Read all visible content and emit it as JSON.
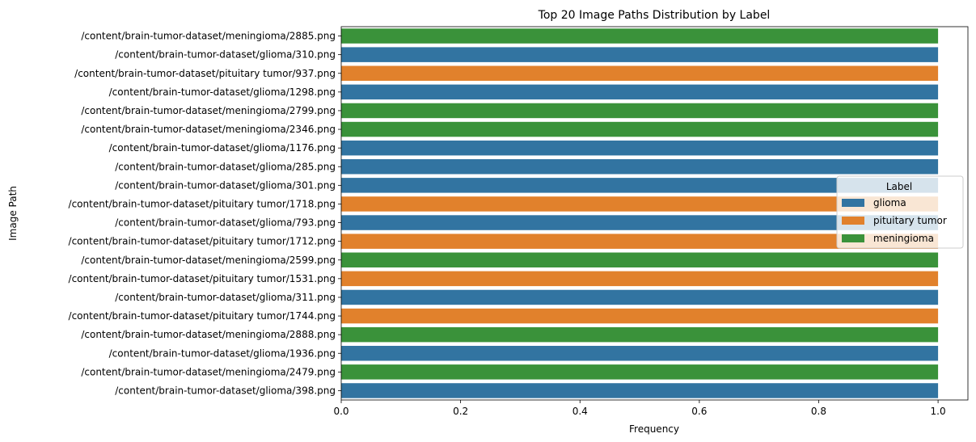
{
  "chart_data": {
    "type": "bar",
    "orientation": "horizontal",
    "title": "Top 20 Image Paths Distribution by Label",
    "xlabel": "Frequency",
    "ylabel": "Image Path",
    "xlim": [
      0,
      1.05
    ],
    "xticks": [
      0.0,
      0.2,
      0.4,
      0.6,
      0.8,
      1.0
    ],
    "xtick_labels": [
      "0.0",
      "0.2",
      "0.4",
      "0.6",
      "0.8",
      "1.0"
    ],
    "grid": false,
    "legend": {
      "title": "Label",
      "placement": "center-right",
      "entries": [
        {
          "name": "glioma",
          "color": "#3274a1"
        },
        {
          "name": "pituitary tumor",
          "color": "#e1812c"
        },
        {
          "name": "meningioma",
          "color": "#3a923a"
        }
      ]
    },
    "bars": [
      {
        "category": "/content/brain-tumor-dataset/meningioma/2885.png",
        "value": 1.0,
        "label": "meningioma"
      },
      {
        "category": "/content/brain-tumor-dataset/glioma/310.png",
        "value": 1.0,
        "label": "glioma"
      },
      {
        "category": "/content/brain-tumor-dataset/pituitary tumor/937.png",
        "value": 1.0,
        "label": "pituitary tumor"
      },
      {
        "category": "/content/brain-tumor-dataset/glioma/1298.png",
        "value": 1.0,
        "label": "glioma"
      },
      {
        "category": "/content/brain-tumor-dataset/meningioma/2799.png",
        "value": 1.0,
        "label": "meningioma"
      },
      {
        "category": "/content/brain-tumor-dataset/meningioma/2346.png",
        "value": 1.0,
        "label": "meningioma"
      },
      {
        "category": "/content/brain-tumor-dataset/glioma/1176.png",
        "value": 1.0,
        "label": "glioma"
      },
      {
        "category": "/content/brain-tumor-dataset/glioma/285.png",
        "value": 1.0,
        "label": "glioma"
      },
      {
        "category": "/content/brain-tumor-dataset/glioma/301.png",
        "value": 1.0,
        "label": "glioma"
      },
      {
        "category": "/content/brain-tumor-dataset/pituitary tumor/1718.png",
        "value": 1.0,
        "label": "pituitary tumor"
      },
      {
        "category": "/content/brain-tumor-dataset/glioma/793.png",
        "value": 1.0,
        "label": "glioma"
      },
      {
        "category": "/content/brain-tumor-dataset/pituitary tumor/1712.png",
        "value": 1.0,
        "label": "pituitary tumor"
      },
      {
        "category": "/content/brain-tumor-dataset/meningioma/2599.png",
        "value": 1.0,
        "label": "meningioma"
      },
      {
        "category": "/content/brain-tumor-dataset/pituitary tumor/1531.png",
        "value": 1.0,
        "label": "pituitary tumor"
      },
      {
        "category": "/content/brain-tumor-dataset/glioma/311.png",
        "value": 1.0,
        "label": "glioma"
      },
      {
        "category": "/content/brain-tumor-dataset/pituitary tumor/1744.png",
        "value": 1.0,
        "label": "pituitary tumor"
      },
      {
        "category": "/content/brain-tumor-dataset/meningioma/2888.png",
        "value": 1.0,
        "label": "meningioma"
      },
      {
        "category": "/content/brain-tumor-dataset/glioma/1936.png",
        "value": 1.0,
        "label": "glioma"
      },
      {
        "category": "/content/brain-tumor-dataset/meningioma/2479.png",
        "value": 1.0,
        "label": "meningioma"
      },
      {
        "category": "/content/brain-tumor-dataset/glioma/398.png",
        "value": 1.0,
        "label": "glioma"
      }
    ]
  }
}
